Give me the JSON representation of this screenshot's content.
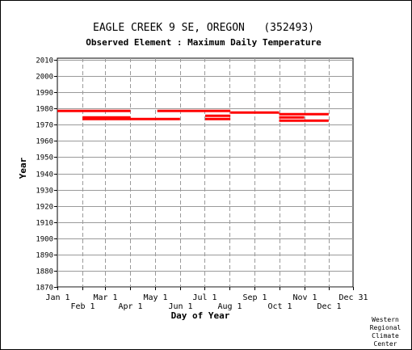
{
  "chart_data": {
    "type": "bar",
    "title": "EAGLE CREEK 9 SE, OREGON   (352493)",
    "subtitle": "Observed Element : Maximum Daily Temperature",
    "xlabel": "Day of Year",
    "ylabel": "Year",
    "xlim": [
      1,
      365
    ],
    "ylim": [
      1870,
      2011
    ],
    "y_ticks": [
      1870,
      1880,
      1890,
      1900,
      1910,
      1920,
      1930,
      1940,
      1950,
      1960,
      1970,
      1980,
      1990,
      2000,
      2010
    ],
    "x_ticks_top": [
      {
        "label": "Jan 1",
        "day": 1
      },
      {
        "label": "Mar 1",
        "day": 60
      },
      {
        "label": "May 1",
        "day": 121
      },
      {
        "label": "Jul 1",
        "day": 182
      },
      {
        "label": "Sep 1",
        "day": 244
      },
      {
        "label": "Nov 1",
        "day": 305
      },
      {
        "label": "Dec 31",
        "day": 365
      }
    ],
    "x_ticks_bottom": [
      {
        "label": "Feb 1",
        "day": 32
      },
      {
        "label": "Apr 1",
        "day": 91
      },
      {
        "label": "Jun 1",
        "day": 152
      },
      {
        "label": "Aug 1",
        "day": 213
      },
      {
        "label": "Oct 1",
        "day": 274
      },
      {
        "label": "Dec 1",
        "day": 335
      }
    ],
    "grid": true,
    "series_color": "#ff0000",
    "records": [
      {
        "year": 1978,
        "start_day": 1,
        "end_day": 90
      },
      {
        "year": 1978,
        "start_day": 124,
        "end_day": 213
      },
      {
        "year": 1977,
        "start_day": 214,
        "end_day": 273
      },
      {
        "year": 1976,
        "start_day": 274,
        "end_day": 334
      },
      {
        "year": 1975,
        "start_day": 183,
        "end_day": 213
      },
      {
        "year": 1974,
        "start_day": 32,
        "end_day": 90
      },
      {
        "year": 1974,
        "start_day": 274,
        "end_day": 304
      },
      {
        "year": 1973,
        "start_day": 32,
        "end_day": 90
      },
      {
        "year": 1973,
        "start_day": 91,
        "end_day": 151
      },
      {
        "year": 1973,
        "start_day": 183,
        "end_day": 213
      },
      {
        "year": 1972,
        "start_day": 274,
        "end_day": 334
      }
    ]
  },
  "credit": [
    "Western",
    "Regional",
    "Climate",
    "Center"
  ]
}
